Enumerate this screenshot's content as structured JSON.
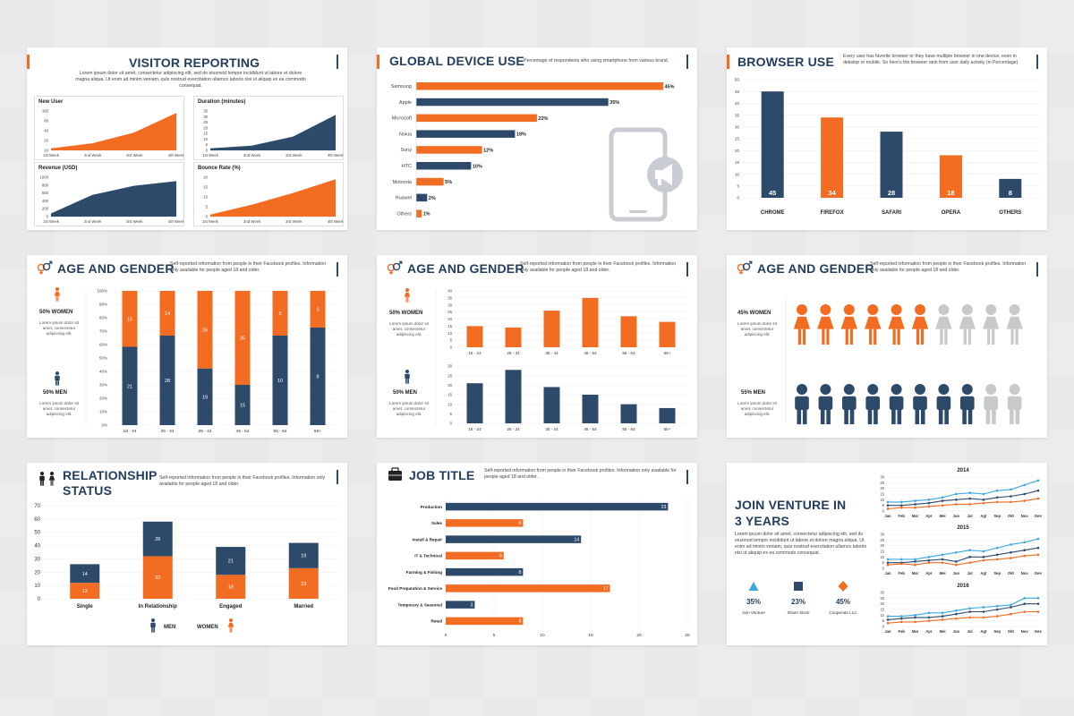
{
  "colors": {
    "navy": "#2e4a6b",
    "orange": "#f26c22",
    "blue": "#3aa7e0",
    "grey": "#c9c9c9"
  },
  "visitor": {
    "title": "VISITOR REPORTING",
    "desc": "Lorem ipsum dolor sit amet, consectetur adipiscing elit, sed do eiusmod tempor incididunt ut labore et dolore magna aliqua. Ut enim ad minim veniam, quis nostrud exercitation ullamco laboris nisi ut aliquip ex ea commodo consequat.",
    "panels": [
      {
        "title": "New User",
        "color": "#f26c22",
        "yticks": [
          "160",
          "80",
          "40",
          "20",
          "10"
        ],
        "xticks": [
          "1st Week",
          "2nd Week",
          "3rd Week",
          "4th Week"
        ]
      },
      {
        "title": "Duration (minutes)",
        "color": "#2e4a6b",
        "yticks": [
          "35",
          "30",
          "25",
          "20",
          "15",
          "10",
          "5",
          "0"
        ],
        "xticks": [
          "1st Week",
          "2nd Week",
          "3rd Week",
          "4th Week"
        ]
      },
      {
        "title": "Revenue (USD)",
        "color": "#2e4a6b",
        "yticks": [
          "1000",
          "800",
          "600",
          "400",
          "200",
          "0"
        ],
        "xticks": [
          "1st Week",
          "2nd Week",
          "3rd Week",
          "4th Week"
        ]
      },
      {
        "title": "Bounce Rate (%)",
        "color": "#f26c22",
        "yticks": [
          "20",
          "15",
          "10",
          "5",
          "0"
        ],
        "xticks": [
          "1st Week",
          "2nd Week",
          "3rd Week",
          "4th Week"
        ]
      }
    ]
  },
  "device": {
    "title": "GLOBAL DEVICE USE",
    "desc": "Percentage of respondents who using smartphone from various brand.",
    "icon": "phone-megaphone-icon"
  },
  "browser": {
    "title": "BROWSER USE",
    "desc": "Every user has favorite browser or they have multiple browser in one device, even in dekstop or mobile. So here's the browser rank from user daily activity (in Percentage)"
  },
  "age1": {
    "title": "AGE AND GENDER",
    "desc": "Self-reported information from people in their Facebook profiles. Information only available for people aged 18 and older.",
    "women": "50% WOMEN",
    "men": "50% MEN",
    "side_text": "Lorem ipsum dolor sit amet, consectetur adipiscing elit."
  },
  "age2": {
    "title": "AGE AND GENDER",
    "desc": "Self-reported information from people in their Facebook profiles. Information only available for people aged 18 and older.",
    "women": "50% WOMEN",
    "men": "50% MEN",
    "side_text": "Lorem ipsum dolor sit amet, consectetur adipiscing elit."
  },
  "age3": {
    "title": "AGE AND GENDER",
    "desc": "Self-reported information from people in their Facebook profiles. Information only available for people aged 18 and older.",
    "women": "45% WOMEN",
    "men": "55% MEN",
    "side_text": "Lorem ipsum dolor sit amet, consectetur adipiscing elit.",
    "women_filled": 6,
    "men_filled": 8,
    "total": 10
  },
  "relationship": {
    "title": "RELATIONSHIP STATUS",
    "desc": "Self-reported information from people in their Facebook profiles. Information only available for people aged 18 and older.",
    "legend_men": "MEN",
    "legend_women": "WOMEN"
  },
  "job": {
    "title": "JOB TITLE",
    "desc": "Self-reported information from people in their Facebook profiles. Information only available for people aged 18 and older."
  },
  "venture": {
    "title": "JOIN VENTURE IN 3 YEARS",
    "desc": "Lorem ipsum dolor sit amet, consectetur adipiscing elit, sed do eiusmod tempor incididunt ut labore et dolore magna aliqua. Ut enim ad minim veniam, quis nostrud exercitation ullamco laboris nisi ut aliquip ex ea commodo consequat.",
    "stats": [
      {
        "value": "35%",
        "label": "Join Venture",
        "color": "#3aa7e0",
        "icon": "triangle-icon"
      },
      {
        "value": "23%",
        "label": "Share Stock",
        "color": "#2e4a6b",
        "icon": "square-icon"
      },
      {
        "value": "45%",
        "label": "Cooperate LLC",
        "color": "#f26c22",
        "icon": "diamond-icon"
      }
    ]
  },
  "chart_data": [
    {
      "type": "bar",
      "orientation": "horizontal",
      "title": "GLOBAL DEVICE USE",
      "categories": [
        "Samsung",
        "Apple",
        "Microsoft",
        "Nokia",
        "Sony",
        "HTC",
        "Motorola",
        "Huawei",
        "Others"
      ],
      "values": [
        45,
        35,
        22,
        18,
        12,
        10,
        5,
        2,
        1
      ],
      "labels": [
        "45%",
        "35%",
        "22%",
        "18%",
        "12%",
        "10%",
        "5%",
        "2%",
        "1%"
      ],
      "colors": [
        "#f26c22",
        "#2e4a6b",
        "#f26c22",
        "#2e4a6b",
        "#f26c22",
        "#2e4a6b",
        "#f26c22",
        "#2e4a6b",
        "#f26c22"
      ],
      "xlim": [
        0,
        45
      ]
    },
    {
      "type": "bar",
      "title": "BROWSER USE",
      "categories": [
        "CHROME",
        "FIREFOX",
        "SAFARI",
        "OPERA",
        "OTHERS"
      ],
      "values": [
        45,
        34,
        28,
        18,
        8
      ],
      "colors": [
        "#2e4a6b",
        "#f26c22",
        "#2e4a6b",
        "#f26c22",
        "#2e4a6b"
      ],
      "ylim": [
        0,
        50
      ],
      "yticks": [
        "50",
        "45",
        "40",
        "35",
        "30",
        "25",
        "20",
        "15",
        "10",
        "5",
        "0"
      ]
    },
    {
      "type": "bar",
      "stacked": true,
      "percent": true,
      "title": "AGE AND GENDER",
      "categories": [
        "18 - 24",
        "25 - 34",
        "35 - 44",
        "45 - 54",
        "55 - 64",
        "65+"
      ],
      "series": [
        {
          "name": "MEN",
          "values": [
            21,
            28,
            19,
            15,
            10,
            8
          ],
          "color": "#2e4a6b"
        },
        {
          "name": "WOMEN",
          "values": [
            15,
            14,
            26,
            35,
            5,
            3
          ],
          "color": "#f26c22"
        }
      ],
      "yticks": [
        "100%",
        "90%",
        "80%",
        "70%",
        "60%",
        "50%",
        "40%",
        "30%",
        "20%",
        "10%",
        "0%"
      ]
    },
    {
      "type": "bar",
      "title": "AGE AND GENDER",
      "categories": [
        "18 - 24",
        "25 - 34",
        "35 - 44",
        "45 - 54",
        "55 - 64",
        "65+"
      ],
      "values": [
        15,
        14,
        26,
        35,
        22,
        18
      ],
      "color": "#f26c22",
      "ylim": [
        0,
        40
      ],
      "yticks": [
        "40",
        "35",
        "30",
        "25",
        "20",
        "15",
        "10",
        "5",
        "0"
      ]
    },
    {
      "type": "bar",
      "title": "AGE AND GENDER",
      "categories": [
        "18 - 24",
        "25 - 34",
        "35 - 44",
        "45 - 54",
        "55 - 64",
        "65+"
      ],
      "values": [
        21,
        28,
        19,
        15,
        10,
        8
      ],
      "color": "#2e4a6b",
      "ylim": [
        0,
        30
      ],
      "yticks": [
        "30",
        "25",
        "20",
        "15",
        "10",
        "5",
        "0"
      ]
    },
    {
      "type": "bar",
      "stacked": true,
      "title": "RELATIONSHIP STATUS",
      "categories": [
        "Single",
        "In Relationship",
        "Engaged",
        "Married"
      ],
      "series": [
        {
          "name": "WOMEN",
          "values": [
            12,
            32,
            18,
            23
          ],
          "color": "#f26c22"
        },
        {
          "name": "MEN",
          "values": [
            14,
            26,
            21,
            19
          ],
          "color": "#2e4a6b"
        }
      ],
      "ylim": [
        0,
        70
      ],
      "yticks": [
        "70",
        "60",
        "50",
        "40",
        "30",
        "20",
        "10",
        "0"
      ]
    },
    {
      "type": "bar",
      "orientation": "horizontal",
      "title": "JOB TITLE",
      "categories": [
        "Production",
        "Sales",
        "Install & Repair",
        "IT & Technical",
        "Farming & Fishing",
        "Food Preparation & Service",
        "Temporary & Seasonal",
        "Retail"
      ],
      "values": [
        23,
        8,
        14,
        6,
        8,
        17,
        3,
        8
      ],
      "colors": [
        "#2e4a6b",
        "#f26c22",
        "#2e4a6b",
        "#f26c22",
        "#2e4a6b",
        "#f26c22",
        "#2e4a6b",
        "#f26c22"
      ],
      "xlim": [
        0,
        25
      ],
      "xticks": [
        "0",
        "5",
        "10",
        "15",
        "20",
        "25"
      ]
    },
    {
      "type": "line",
      "title": "2014",
      "x": [
        "Jan",
        "Feb",
        "Mar",
        "Apr",
        "Mei",
        "Jun",
        "Jul",
        "Agt",
        "Sep",
        "Okt",
        "Nov",
        "Des"
      ],
      "series": [
        {
          "values": [
            8,
            8,
            9,
            10,
            12,
            15,
            16,
            15,
            18,
            19,
            23,
            27
          ],
          "color": "#3aa7e0"
        },
        {
          "values": [
            5,
            5,
            6,
            7,
            9,
            10,
            11,
            10,
            12,
            13,
            15,
            18
          ],
          "color": "#2e4a6b"
        },
        {
          "values": [
            2,
            3,
            3,
            4,
            5,
            6,
            6,
            7,
            8,
            8,
            9,
            11
          ],
          "color": "#f26c22"
        }
      ],
      "ylim": [
        0,
        30
      ],
      "yticks": [
        "30",
        "25",
        "20",
        "15",
        "10",
        "5",
        "0"
      ]
    },
    {
      "type": "line",
      "title": "2015",
      "x": [
        "Jan",
        "Feb",
        "Mar",
        "Apr",
        "Mei",
        "Jun",
        "Jul",
        "Agt",
        "Sep",
        "Okt",
        "Nov",
        "Des"
      ],
      "series": [
        {
          "values": [
            8,
            8,
            8,
            10,
            12,
            14,
            16,
            15,
            18,
            21,
            23,
            26
          ],
          "color": "#3aa7e0"
        },
        {
          "values": [
            5,
            5,
            6,
            7,
            8,
            6,
            10,
            10,
            12,
            14,
            16,
            18
          ],
          "color": "#2e4a6b"
        },
        {
          "values": [
            3,
            4,
            3,
            5,
            5,
            3,
            5,
            7,
            8,
            9,
            11,
            12
          ],
          "color": "#f26c22"
        }
      ],
      "ylim": [
        0,
        30
      ],
      "yticks": [
        "30",
        "25",
        "20",
        "15",
        "10",
        "5",
        "0"
      ]
    },
    {
      "type": "line",
      "title": "2016",
      "x": [
        "Jan",
        "Feb",
        "Mar",
        "Apr",
        "Mei",
        "Jun",
        "Jul",
        "Agt",
        "Sep",
        "Okt",
        "Nov",
        "Des"
      ],
      "series": [
        {
          "values": [
            9,
            9,
            10,
            12,
            12,
            14,
            16,
            17,
            18,
            19,
            25,
            25
          ],
          "color": "#3aa7e0"
        },
        {
          "values": [
            6,
            7,
            8,
            8,
            9,
            11,
            13,
            13,
            15,
            17,
            20,
            20
          ],
          "color": "#2e4a6b"
        },
        {
          "values": [
            3,
            4,
            4,
            5,
            6,
            7,
            8,
            8,
            9,
            11,
            13,
            13
          ],
          "color": "#f26c22"
        }
      ],
      "ylim": [
        0,
        30
      ],
      "yticks": [
        "30",
        "25",
        "20",
        "15",
        "10",
        "5",
        "0"
      ]
    }
  ]
}
